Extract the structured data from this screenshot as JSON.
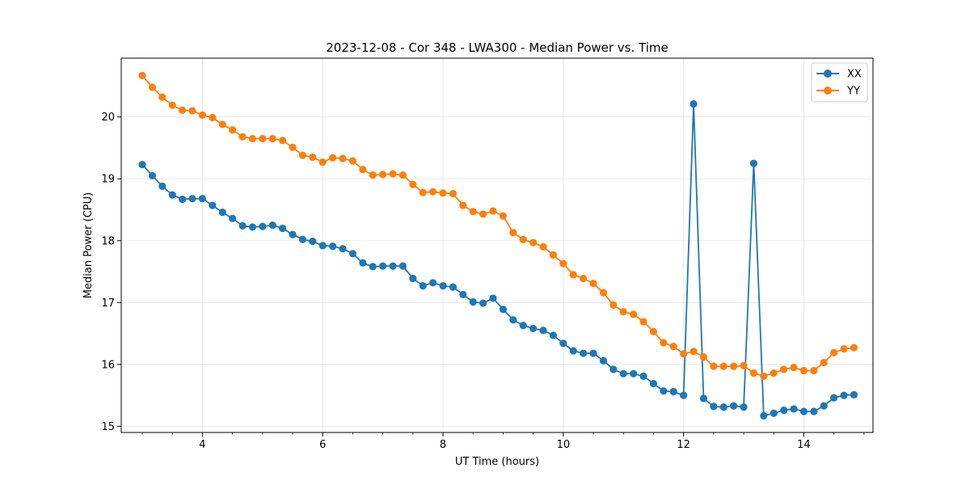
{
  "chart_data": {
    "type": "line",
    "title": "2023-12-08 - Cor 348 - LWA300 - Median Power vs. Time",
    "xlabel": "UT Time (hours)",
    "ylabel": "Median Power (CPU)",
    "xlim": [
      2.65,
      15.15
    ],
    "ylim": [
      14.9,
      20.95
    ],
    "xticks": [
      4,
      6,
      8,
      10,
      12,
      14
    ],
    "yticks": [
      15,
      16,
      17,
      18,
      19,
      20
    ],
    "xtick_labels": [
      "4",
      "6",
      "8",
      "10",
      "12",
      "14"
    ],
    "ytick_labels": [
      "15",
      "16",
      "17",
      "18",
      "19",
      "20"
    ],
    "grid": true,
    "legend": "top-right",
    "x": [
      3.0,
      3.167,
      3.333,
      3.5,
      3.667,
      3.833,
      4.0,
      4.167,
      4.333,
      4.5,
      4.667,
      4.833,
      5.0,
      5.167,
      5.333,
      5.5,
      5.667,
      5.833,
      6.0,
      6.167,
      6.333,
      6.5,
      6.667,
      6.833,
      7.0,
      7.167,
      7.333,
      7.5,
      7.667,
      7.833,
      8.0,
      8.167,
      8.333,
      8.5,
      8.667,
      8.833,
      9.0,
      9.167,
      9.333,
      9.5,
      9.667,
      9.833,
      10.0,
      10.167,
      10.333,
      10.5,
      10.667,
      10.833,
      11.0,
      11.167,
      11.333,
      11.5,
      11.667,
      11.833,
      12.0,
      12.167,
      12.333,
      12.5,
      12.667,
      12.833,
      13.0,
      13.167,
      13.333,
      13.5,
      13.667,
      13.833,
      14.0,
      14.167,
      14.333,
      14.5,
      14.667,
      14.833
    ],
    "series": [
      {
        "name": "XX",
        "color": "#1f77b4",
        "values": [
          19.23,
          19.05,
          18.88,
          18.74,
          18.67,
          18.68,
          18.68,
          18.57,
          18.46,
          18.36,
          18.24,
          18.22,
          18.23,
          18.25,
          18.2,
          18.1,
          18.02,
          17.99,
          17.92,
          17.91,
          17.87,
          17.79,
          17.64,
          17.58,
          17.59,
          17.59,
          17.59,
          17.39,
          17.27,
          17.32,
          17.27,
          17.25,
          17.13,
          17.01,
          16.99,
          17.07,
          16.89,
          16.72,
          16.63,
          16.58,
          16.55,
          16.47,
          16.34,
          16.22,
          16.18,
          16.18,
          16.06,
          15.92,
          15.85,
          15.85,
          15.81,
          15.69,
          15.57,
          15.56,
          15.5,
          20.21,
          15.45,
          15.32,
          15.31,
          15.33,
          15.31,
          19.25,
          15.17,
          15.21,
          15.26,
          15.28,
          15.24,
          15.24,
          15.33,
          15.46,
          15.5,
          15.51
        ]
      },
      {
        "name": "YY",
        "color": "#ff7f0e",
        "values": [
          20.67,
          20.48,
          20.32,
          20.19,
          20.11,
          20.1,
          20.03,
          19.99,
          19.88,
          19.79,
          19.68,
          19.65,
          19.65,
          19.65,
          19.62,
          19.51,
          19.38,
          19.35,
          19.27,
          19.34,
          19.33,
          19.29,
          19.15,
          19.06,
          19.07,
          19.08,
          19.06,
          18.91,
          18.78,
          18.79,
          18.77,
          18.76,
          18.57,
          18.47,
          18.43,
          18.48,
          18.4,
          18.13,
          18.02,
          17.97,
          17.9,
          17.77,
          17.63,
          17.45,
          17.39,
          17.31,
          17.16,
          16.96,
          16.85,
          16.81,
          16.69,
          16.53,
          16.35,
          16.29,
          16.17,
          16.21,
          16.12,
          15.97,
          15.97,
          15.97,
          15.98,
          15.86,
          15.81,
          15.86,
          15.92,
          15.95,
          15.9,
          15.9,
          16.03,
          16.19,
          16.25,
          16.27
        ]
      }
    ]
  }
}
